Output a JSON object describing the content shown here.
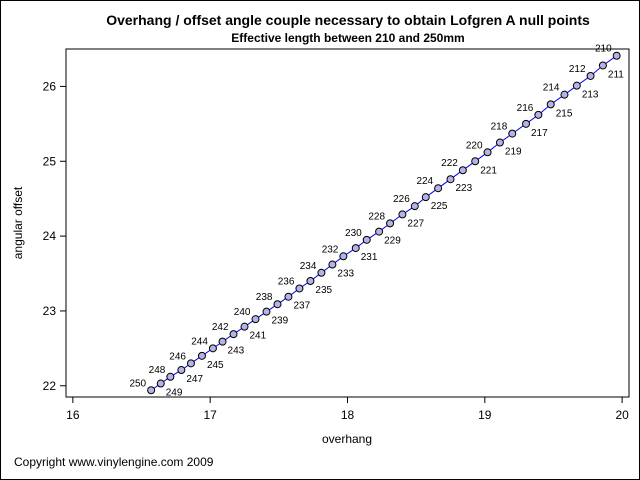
{
  "chart_data": {
    "type": "scatter",
    "title": "Overhang / offset angle couple necessary to obtain Lofgren A null points",
    "subtitle": "Effective length between 210 and 250mm",
    "xlabel": "overhang",
    "ylabel": "angular offset",
    "xlim": [
      15.95,
      20.05
    ],
    "ylim": [
      21.85,
      26.5
    ],
    "xticks": [
      16,
      17,
      18,
      19,
      20
    ],
    "yticks": [
      22,
      23,
      24,
      25,
      26
    ],
    "xtick_labels": [
      "16",
      "17",
      "18",
      "19",
      "20"
    ],
    "ytick_labels": [
      "22",
      "23",
      "24",
      "25",
      "26"
    ],
    "grid": false,
    "legend": "none",
    "colors": {
      "line": "#0000ff",
      "marker_fill": "#b3b3e6",
      "marker_edge": "#000000"
    },
    "series": [
      {
        "points": [
          {
            "label": "210",
            "x": 19.96,
            "y": 26.41
          },
          {
            "label": "211",
            "x": 19.86,
            "y": 26.28
          },
          {
            "label": "212",
            "x": 19.77,
            "y": 26.14
          },
          {
            "label": "213",
            "x": 19.67,
            "y": 26.01
          },
          {
            "label": "214",
            "x": 19.58,
            "y": 25.89
          },
          {
            "label": "215",
            "x": 19.48,
            "y": 25.76
          },
          {
            "label": "216",
            "x": 19.39,
            "y": 25.62
          },
          {
            "label": "217",
            "x": 19.3,
            "y": 25.5
          },
          {
            "label": "218",
            "x": 19.2,
            "y": 25.37
          },
          {
            "label": "219",
            "x": 19.11,
            "y": 25.25
          },
          {
            "label": "220",
            "x": 19.02,
            "y": 25.12
          },
          {
            "label": "221",
            "x": 18.93,
            "y": 25.0
          },
          {
            "label": "222",
            "x": 18.84,
            "y": 24.88
          },
          {
            "label": "223",
            "x": 18.75,
            "y": 24.76
          },
          {
            "label": "224",
            "x": 18.66,
            "y": 24.64
          },
          {
            "label": "225",
            "x": 18.57,
            "y": 24.52
          },
          {
            "label": "226",
            "x": 18.49,
            "y": 24.4
          },
          {
            "label": "227",
            "x": 18.4,
            "y": 24.29
          },
          {
            "label": "228",
            "x": 18.31,
            "y": 24.17
          },
          {
            "label": "229",
            "x": 18.23,
            "y": 24.06
          },
          {
            "label": "230",
            "x": 18.14,
            "y": 23.95
          },
          {
            "label": "231",
            "x": 18.06,
            "y": 23.84
          },
          {
            "label": "232",
            "x": 17.97,
            "y": 23.73
          },
          {
            "label": "233",
            "x": 17.89,
            "y": 23.62
          },
          {
            "label": "234",
            "x": 17.81,
            "y": 23.51
          },
          {
            "label": "235",
            "x": 17.73,
            "y": 23.4
          },
          {
            "label": "236",
            "x": 17.65,
            "y": 23.3
          },
          {
            "label": "237",
            "x": 17.57,
            "y": 23.19
          },
          {
            "label": "238",
            "x": 17.49,
            "y": 23.09
          },
          {
            "label": "239",
            "x": 17.41,
            "y": 22.99
          },
          {
            "label": "240",
            "x": 17.33,
            "y": 22.89
          },
          {
            "label": "241",
            "x": 17.25,
            "y": 22.79
          },
          {
            "label": "242",
            "x": 17.17,
            "y": 22.69
          },
          {
            "label": "243",
            "x": 17.09,
            "y": 22.59
          },
          {
            "label": "244",
            "x": 17.02,
            "y": 22.5
          },
          {
            "label": "245",
            "x": 16.94,
            "y": 22.4
          },
          {
            "label": "246",
            "x": 16.86,
            "y": 22.3
          },
          {
            "label": "247",
            "x": 16.79,
            "y": 22.21
          },
          {
            "label": "248",
            "x": 16.71,
            "y": 22.12
          },
          {
            "label": "249",
            "x": 16.64,
            "y": 22.03
          },
          {
            "label": "250",
            "x": 16.57,
            "y": 21.94
          }
        ]
      }
    ]
  },
  "footnote": "Copyright www.vinylengine.com 2009"
}
